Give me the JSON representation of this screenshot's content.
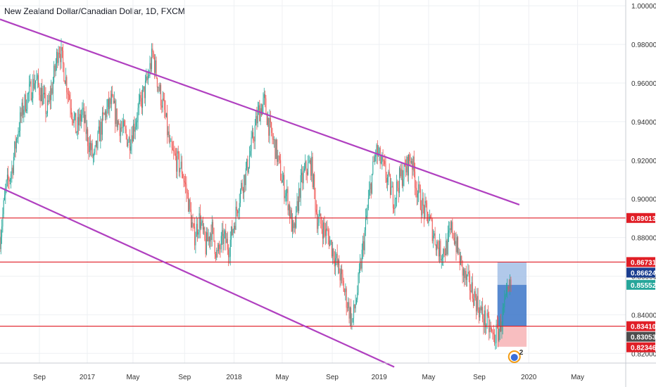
{
  "chart_data": {
    "type": "line",
    "title": "New Zealand Dollar/Canadian Dollar, 1D, FXCM",
    "xlabel": "",
    "ylabel": "",
    "x_ticks": [
      "Sep",
      "2017",
      "May",
      "Sep",
      "2018",
      "May",
      "Sep",
      "2019",
      "May",
      "Sep",
      "2020",
      "May"
    ],
    "y_ticks": [
      "1.00000",
      "0.98000",
      "0.96000",
      "0.94000",
      "0.92000",
      "0.90000",
      "0.88000",
      "0.86000",
      "0.84000",
      "0.82000"
    ],
    "ylim": [
      0.815,
      1.003
    ],
    "grid": true,
    "series": [
      {
        "values": [
          0.88,
          0.905,
          0.915,
          0.935,
          0.948,
          0.955,
          0.962,
          0.955,
          0.945,
          0.96,
          0.98,
          0.965,
          0.95,
          0.935,
          0.945,
          0.93,
          0.92,
          0.935,
          0.945,
          0.95,
          0.94,
          0.935,
          0.93,
          0.94,
          0.95,
          0.96,
          0.975,
          0.958,
          0.945,
          0.925,
          0.92,
          0.915,
          0.9,
          0.88,
          0.89,
          0.875,
          0.885,
          0.87,
          0.88,
          0.875,
          0.89,
          0.905,
          0.915,
          0.93,
          0.945,
          0.95,
          0.935,
          0.925,
          0.91,
          0.9,
          0.88,
          0.905,
          0.915,
          0.918,
          0.89,
          0.885,
          0.88,
          0.87,
          0.86,
          0.848,
          0.836,
          0.855,
          0.88,
          0.905,
          0.925,
          0.918,
          0.91,
          0.9,
          0.91,
          0.915,
          0.922,
          0.905,
          0.895,
          0.89,
          0.88,
          0.872,
          0.875,
          0.885,
          0.872,
          0.86,
          0.855,
          0.848,
          0.84,
          0.835,
          0.828,
          0.832,
          0.845,
          0.855
        ]
      }
    ],
    "horizontal_levels": [
      0.89013,
      0.86731,
      0.8341
    ],
    "price_labels": [
      {
        "value": 0.89013,
        "text": "0.89013",
        "color": "#e01e26"
      },
      {
        "value": 0.86731,
        "text": "0.86731",
        "color": "#e01e26"
      },
      {
        "value": 0.86624,
        "text": "0.86624",
        "color": "#1a3d8f"
      },
      {
        "value": 0.85552,
        "text": "0.85552",
        "color": "#26a69a"
      },
      {
        "value": 0.8341,
        "text": "0.83410",
        "color": "#e01e26"
      },
      {
        "value": 0.83053,
        "text": "0.83053",
        "color": "#4d4d4d"
      },
      {
        "value": 0.82346,
        "text": "0.82346",
        "color": "#e01e26"
      }
    ],
    "channel": {
      "upper": [
        [
          0.0,
          0.993
        ],
        [
          0.83,
          0.897
        ]
      ],
      "lower": [
        [
          0.0,
          0.906
        ],
        [
          0.63,
          0.813
        ]
      ]
    },
    "position": {
      "entry": 0.8341,
      "target": 0.86731,
      "stop": 0.82346,
      "current": 0.85552
    },
    "colors": {
      "up": "#26a69a",
      "down": "#ef5350",
      "channel": "#b040c0",
      "level": "#e01e26",
      "profit_zone": "#3a74c8",
      "loss_zone": "#f7b7b9"
    },
    "badge": "2"
  }
}
